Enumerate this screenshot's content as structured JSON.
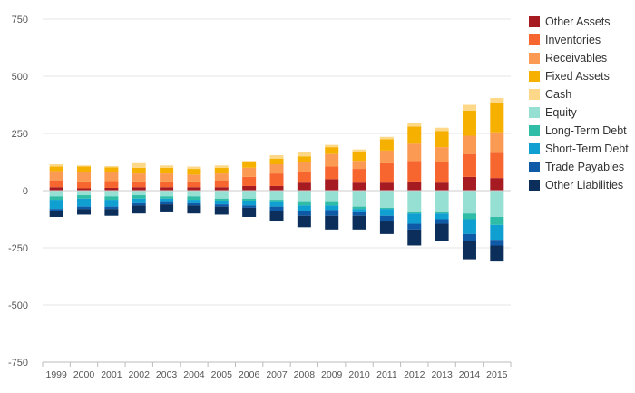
{
  "chart_data": {
    "type": "bar",
    "stacked": true,
    "categories": [
      "1999",
      "2000",
      "2001",
      "2002",
      "2003",
      "2004",
      "2005",
      "2006",
      "2007",
      "2008",
      "2009",
      "2010",
      "2011",
      "2012",
      "2013",
      "2014",
      "2015"
    ],
    "ylim": [
      -750,
      750
    ],
    "yticks": [
      750,
      500,
      250,
      0,
      -250,
      -500,
      -750
    ],
    "grid": true,
    "legend_position": "right",
    "series": [
      {
        "name": "Other Assets",
        "color": "#a61b22",
        "values": [
          15,
          10,
          12,
          15,
          15,
          15,
          15,
          20,
          20,
          35,
          50,
          35,
          35,
          40,
          35,
          60,
          55
        ]
      },
      {
        "name": "Inventories",
        "color": "#f8662f",
        "values": [
          30,
          30,
          30,
          25,
          25,
          25,
          30,
          40,
          55,
          45,
          55,
          60,
          85,
          90,
          90,
          100,
          110
        ]
      },
      {
        "name": "Receivables",
        "color": "#fb9a52",
        "values": [
          40,
          40,
          40,
          35,
          35,
          30,
          30,
          40,
          40,
          45,
          55,
          35,
          55,
          75,
          65,
          80,
          90
        ]
      },
      {
        "name": "Fixed Assets",
        "color": "#f6b100",
        "values": [
          20,
          25,
          20,
          25,
          25,
          25,
          25,
          25,
          25,
          25,
          30,
          40,
          50,
          75,
          70,
          110,
          130
        ]
      },
      {
        "name": "Cash",
        "color": "#fdd888",
        "values": [
          10,
          5,
          5,
          20,
          10,
          10,
          10,
          5,
          15,
          20,
          10,
          10,
          10,
          15,
          15,
          25,
          20
        ]
      },
      {
        "name": "Equity",
        "color": "#96dfd3",
        "values": [
          -25,
          -20,
          -25,
          -20,
          -25,
          -25,
          -35,
          -35,
          -40,
          -50,
          -50,
          -70,
          -75,
          -95,
          -95,
          -100,
          -115
        ]
      },
      {
        "name": "Long-Term Debt",
        "color": "#2fbda8",
        "values": [
          -15,
          -15,
          -15,
          -15,
          -10,
          -15,
          -10,
          -10,
          -10,
          -15,
          -15,
          -10,
          -5,
          -5,
          -5,
          -25,
          -35
        ]
      },
      {
        "name": "Short-Term Debt",
        "color": "#0fa0d1",
        "values": [
          -40,
          -35,
          -30,
          -20,
          -15,
          -15,
          -15,
          -20,
          -20,
          -25,
          -20,
          -15,
          -30,
          -45,
          -25,
          -65,
          -65
        ]
      },
      {
        "name": "Trade Payables",
        "color": "#0f5aa6",
        "values": [
          -10,
          -10,
          -10,
          -10,
          -10,
          -10,
          -10,
          -10,
          -20,
          -20,
          -25,
          -15,
          -25,
          -25,
          -20,
          -30,
          -25
        ]
      },
      {
        "name": "Other Liabilities",
        "color": "#0b2f5a",
        "values": [
          -25,
          -25,
          -30,
          -35,
          -35,
          -35,
          -35,
          -40,
          -45,
          -50,
          -60,
          -60,
          -55,
          -70,
          -75,
          -80,
          -70
        ]
      }
    ]
  }
}
